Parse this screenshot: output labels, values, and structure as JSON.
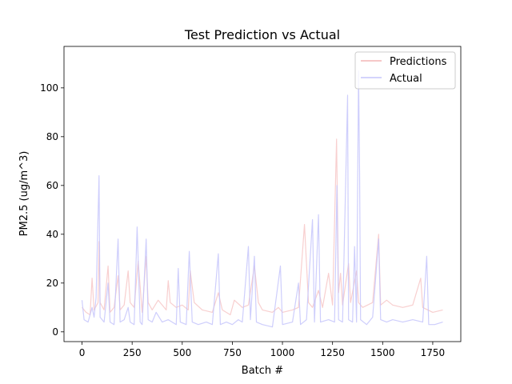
{
  "chart_data": {
    "type": "line",
    "title": "Test Prediction vs Actual",
    "xlabel": "Batch #",
    "ylabel": "PM2.5 (ug/m^3)",
    "xlim": [
      -90,
      1890
    ],
    "ylim": [
      -4,
      117
    ],
    "x_ticks": [
      0,
      250,
      500,
      750,
      1000,
      1250,
      1500,
      1750
    ],
    "y_ticks": [
      0,
      20,
      40,
      60,
      80,
      100
    ],
    "grid": false,
    "legend_position": "top-right",
    "series": [
      {
        "name": "Predictions",
        "color": "#f4b6b6",
        "opacity": 0.65,
        "points": [
          [
            0,
            10
          ],
          [
            20,
            8
          ],
          [
            40,
            7
          ],
          [
            50,
            22
          ],
          [
            60,
            9
          ],
          [
            80,
            12
          ],
          [
            85,
            37
          ],
          [
            90,
            12
          ],
          [
            110,
            9
          ],
          [
            130,
            27
          ],
          [
            140,
            8
          ],
          [
            160,
            10
          ],
          [
            180,
            23
          ],
          [
            190,
            9
          ],
          [
            210,
            11
          ],
          [
            230,
            25
          ],
          [
            240,
            12
          ],
          [
            260,
            10
          ],
          [
            280,
            29
          ],
          [
            300,
            8
          ],
          [
            320,
            31
          ],
          [
            330,
            12
          ],
          [
            350,
            9
          ],
          [
            380,
            13
          ],
          [
            420,
            9
          ],
          [
            430,
            21
          ],
          [
            440,
            12
          ],
          [
            470,
            10
          ],
          [
            500,
            11
          ],
          [
            530,
            9
          ],
          [
            540,
            25
          ],
          [
            560,
            12
          ],
          [
            600,
            9
          ],
          [
            650,
            8
          ],
          [
            680,
            16
          ],
          [
            700,
            9
          ],
          [
            740,
            7
          ],
          [
            760,
            13
          ],
          [
            800,
            10
          ],
          [
            830,
            11
          ],
          [
            860,
            27
          ],
          [
            880,
            12
          ],
          [
            900,
            9
          ],
          [
            950,
            8
          ],
          [
            980,
            10
          ],
          [
            1000,
            8
          ],
          [
            1050,
            9
          ],
          [
            1080,
            10
          ],
          [
            1110,
            44
          ],
          [
            1130,
            12
          ],
          [
            1150,
            10
          ],
          [
            1180,
            17
          ],
          [
            1200,
            10
          ],
          [
            1230,
            24
          ],
          [
            1250,
            11
          ],
          [
            1270,
            79
          ],
          [
            1280,
            16
          ],
          [
            1290,
            24
          ],
          [
            1300,
            11
          ],
          [
            1330,
            28
          ],
          [
            1340,
            12
          ],
          [
            1370,
            25
          ],
          [
            1380,
            12
          ],
          [
            1400,
            10
          ],
          [
            1450,
            12
          ],
          [
            1480,
            40
          ],
          [
            1490,
            11
          ],
          [
            1520,
            13
          ],
          [
            1550,
            11
          ],
          [
            1600,
            10
          ],
          [
            1650,
            11
          ],
          [
            1690,
            22
          ],
          [
            1700,
            10
          ],
          [
            1750,
            8
          ],
          [
            1800,
            9
          ]
        ]
      },
      {
        "name": "Actual",
        "color": "#c6c6fb",
        "opacity": 0.85,
        "points": [
          [
            0,
            13
          ],
          [
            10,
            5
          ],
          [
            30,
            4
          ],
          [
            50,
            10
          ],
          [
            60,
            6
          ],
          [
            70,
            14
          ],
          [
            85,
            64
          ],
          [
            90,
            6
          ],
          [
            110,
            4
          ],
          [
            130,
            20
          ],
          [
            140,
            4
          ],
          [
            160,
            3
          ],
          [
            180,
            38
          ],
          [
            190,
            4
          ],
          [
            210,
            5
          ],
          [
            230,
            10
          ],
          [
            240,
            4
          ],
          [
            260,
            3
          ],
          [
            275,
            43
          ],
          [
            290,
            4
          ],
          [
            300,
            3
          ],
          [
            320,
            38
          ],
          [
            330,
            5
          ],
          [
            350,
            4
          ],
          [
            370,
            8
          ],
          [
            400,
            4
          ],
          [
            430,
            5
          ],
          [
            470,
            3
          ],
          [
            480,
            26
          ],
          [
            490,
            4
          ],
          [
            520,
            3
          ],
          [
            535,
            33
          ],
          [
            550,
            4
          ],
          [
            580,
            3
          ],
          [
            620,
            4
          ],
          [
            650,
            3
          ],
          [
            680,
            32
          ],
          [
            690,
            3
          ],
          [
            720,
            4
          ],
          [
            750,
            3
          ],
          [
            780,
            5
          ],
          [
            800,
            4
          ],
          [
            830,
            35
          ],
          [
            840,
            5
          ],
          [
            860,
            31
          ],
          [
            870,
            4
          ],
          [
            900,
            3
          ],
          [
            950,
            2
          ],
          [
            990,
            27
          ],
          [
            1000,
            3
          ],
          [
            1050,
            4
          ],
          [
            1080,
            20
          ],
          [
            1090,
            3
          ],
          [
            1120,
            5
          ],
          [
            1150,
            46
          ],
          [
            1160,
            4
          ],
          [
            1180,
            48
          ],
          [
            1190,
            4
          ],
          [
            1230,
            5
          ],
          [
            1260,
            4
          ],
          [
            1272,
            60
          ],
          [
            1280,
            5
          ],
          [
            1300,
            4
          ],
          [
            1325,
            97
          ],
          [
            1330,
            5
          ],
          [
            1350,
            4
          ],
          [
            1360,
            35
          ],
          [
            1370,
            4
          ],
          [
            1380,
            107
          ],
          [
            1385,
            65
          ],
          [
            1390,
            5
          ],
          [
            1420,
            3
          ],
          [
            1450,
            6
          ],
          [
            1480,
            38
          ],
          [
            1490,
            5
          ],
          [
            1520,
            4
          ],
          [
            1550,
            5
          ],
          [
            1600,
            4
          ],
          [
            1650,
            5
          ],
          [
            1700,
            4
          ],
          [
            1720,
            31
          ],
          [
            1730,
            3
          ],
          [
            1760,
            3
          ],
          [
            1800,
            4
          ]
        ]
      }
    ]
  }
}
